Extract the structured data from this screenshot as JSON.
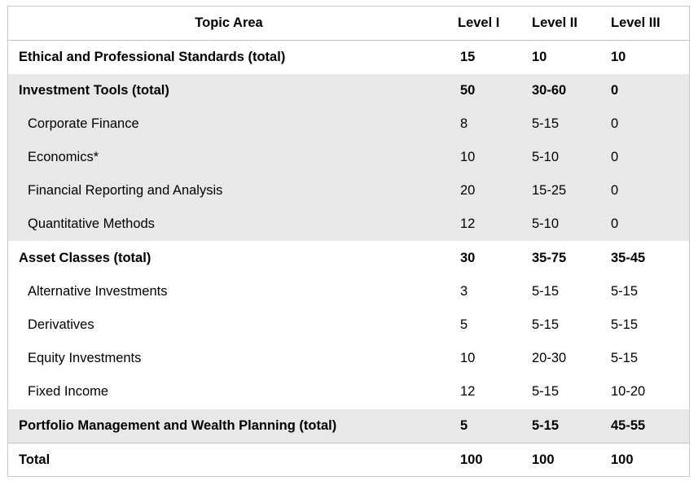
{
  "table": {
    "headers": [
      "Topic Area",
      "Level I",
      "Level II",
      "Level III"
    ],
    "rows": [
      {
        "topic": "Ethical and Professional Standards (total)",
        "l1": "15",
        "l2": "10",
        "l3": "10"
      },
      {
        "topic": "Investment Tools (total)",
        "l1": "50",
        "l2": "30-60",
        "l3": "0"
      },
      {
        "topic": "Corporate Finance",
        "l1": "8",
        "l2": "5-15",
        "l3": "0"
      },
      {
        "topic": "Economics*",
        "l1": "10",
        "l2": "5-10",
        "l3": "0"
      },
      {
        "topic": "Financial Reporting and Analysis",
        "l1": "20",
        "l2": "15-25",
        "l3": "0"
      },
      {
        "topic": "Quantitative Methods",
        "l1": "12",
        "l2": "5-10",
        "l3": "0"
      },
      {
        "topic": "Asset Classes (total)",
        "l1": "30",
        "l2": "35-75",
        "l3": "35-45"
      },
      {
        "topic": "Alternative Investments",
        "l1": "3",
        "l2": "5-15",
        "l3": "5-15"
      },
      {
        "topic": "Derivatives",
        "l1": "5",
        "l2": "5-15",
        "l3": "5-15"
      },
      {
        "topic": "Equity Investments",
        "l1": "10",
        "l2": "20-30",
        "l3": "5-15"
      },
      {
        "topic": "Fixed Income",
        "l1": "12",
        "l2": "5-15",
        "l3": "10-20"
      },
      {
        "topic": "Portfolio Management and Wealth Planning (total)",
        "l1": "5",
        "l2": "5-15",
        "l3": "45-55"
      },
      {
        "topic": "Total",
        "l1": "100",
        "l2": "100",
        "l3": "100"
      }
    ]
  },
  "colors": {
    "shaded_row": "#e8e8e8",
    "border": "#c4c4c4",
    "text": "#000000"
  }
}
